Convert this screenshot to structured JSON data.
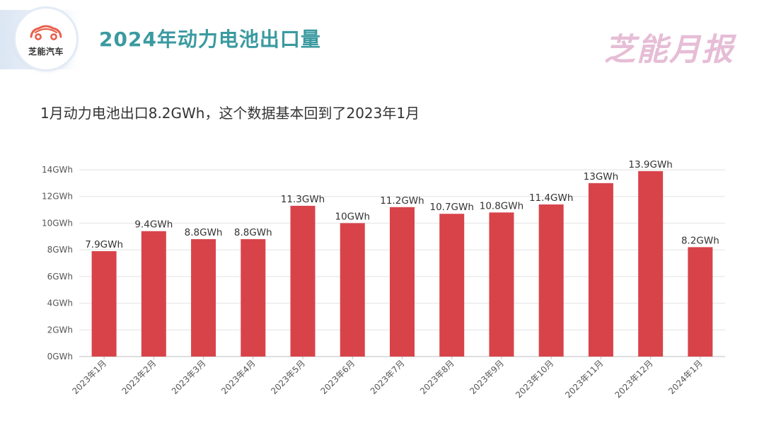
{
  "header": {
    "logo_text": "芝能汽车",
    "title": "2024年动力电池出口量",
    "brand": "芝能月报"
  },
  "subtitle": "1月动力电池出口8.2GWh，这个数据基本回到了2023年1月",
  "colors": {
    "title": "#3a9aa0",
    "bar": "#d8434a",
    "brand": "#e6bdd6",
    "logo": "#e8604c"
  },
  "icons": {
    "logo": "car-logo-icon"
  },
  "chart_data": {
    "type": "bar",
    "title": "",
    "xlabel": "",
    "ylabel": "",
    "categories": [
      "2023年1月",
      "2023年2月",
      "2023年3月",
      "2023年4月",
      "2023年5月",
      "2023年6月",
      "2023年7月",
      "2023年8月",
      "2023年9月",
      "2023年10月",
      "2023年11月",
      "2023年12月",
      "2024年1月"
    ],
    "values": [
      7.9,
      9.4,
      8.8,
      8.8,
      11.3,
      10,
      11.2,
      10.7,
      10.8,
      11.4,
      13,
      13.9,
      8.2
    ],
    "value_labels": [
      "7.9GWh",
      "9.4GWh",
      "8.8GWh",
      "8.8GWh",
      "11.3GWh",
      "10GWh",
      "11.2GWh",
      "10.7GWh",
      "10.8GWh",
      "11.4GWh",
      "13GWh",
      "13.9GWh",
      "8.2GWh"
    ],
    "ylim": [
      0,
      14
    ],
    "yticks": [
      0,
      2,
      4,
      6,
      8,
      10,
      12,
      14
    ],
    "ytick_labels": [
      "0GWh",
      "2GWh",
      "4GWh",
      "6GWh",
      "8GWh",
      "10GWh",
      "12GWh",
      "14GWh"
    ],
    "grid": true,
    "legend": "none"
  }
}
